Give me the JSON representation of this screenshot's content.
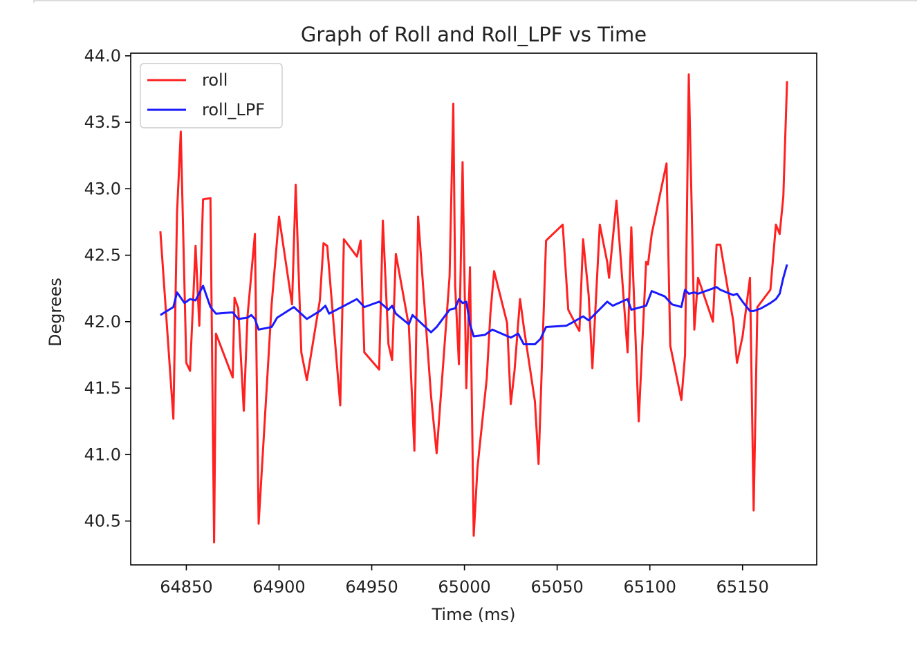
{
  "chart_data": {
    "type": "line",
    "title": "Graph of Roll and Roll_LPF vs Time",
    "xlabel": "Time (ms)",
    "ylabel": "Degrees",
    "xlim": [
      64820,
      65190
    ],
    "ylim": [
      40.17,
      44.02
    ],
    "xticks": [
      64850,
      64900,
      64950,
      65000,
      65050,
      65100,
      65150
    ],
    "xtick_labels": [
      "64850",
      "64900",
      "64950",
      "65000",
      "65050",
      "65100",
      "65150"
    ],
    "yticks": [
      40.5,
      41.0,
      41.5,
      42.0,
      42.5,
      43.0,
      43.5,
      44.0
    ],
    "ytick_labels": [
      "40.5",
      "41.0",
      "41.5",
      "42.0",
      "42.5",
      "43.0",
      "43.5",
      "44.0"
    ],
    "grid": false,
    "legend_position": "upper-left",
    "series": [
      {
        "name": "roll",
        "color": "#ff2020",
        "x": [
          64836,
          64843,
          64845,
          64847,
          64850,
          64852,
          64855,
          64857,
          64859,
          64863,
          64865,
          64866,
          64875,
          64876,
          64878,
          64881,
          64883,
          64887,
          64889,
          64896,
          64900,
          64907,
          64909,
          64912,
          64915,
          64922,
          64924,
          64926,
          64933,
          64935,
          64942,
          64944,
          64946,
          64954,
          64956,
          64959,
          64961,
          64963,
          64970,
          64973,
          64975,
          64982,
          64985,
          64992,
          64994,
          64995,
          64997,
          64999,
          65001,
          65003,
          65005,
          65007,
          65012,
          65014,
          65016,
          65023,
          65025,
          65027,
          65030,
          65032,
          65038,
          65040,
          65044,
          65053,
          65056,
          65060,
          65062,
          65064,
          65067,
          65069,
          65073,
          65077,
          65078,
          65082,
          65088,
          65090,
          65094,
          65098,
          65099,
          65101,
          65109,
          65111,
          65117,
          65119,
          65121,
          65124,
          65126,
          65134,
          65136,
          65138,
          65145,
          65147,
          65150,
          65154,
          65156,
          65158,
          65165,
          65168,
          65170,
          65172,
          65174
        ],
        "y": [
          42.68,
          41.27,
          42.82,
          43.43,
          41.69,
          41.63,
          42.57,
          41.97,
          42.92,
          42.93,
          40.34,
          41.91,
          41.58,
          42.18,
          42.1,
          41.33,
          42.04,
          42.66,
          40.48,
          42.13,
          42.79,
          42.13,
          43.03,
          41.77,
          41.56,
          42.16,
          42.59,
          42.57,
          41.37,
          42.62,
          42.49,
          42.61,
          41.77,
          41.64,
          42.76,
          41.83,
          41.71,
          42.51,
          41.97,
          41.03,
          42.79,
          41.44,
          41.01,
          42.34,
          43.64,
          42.27,
          41.68,
          43.2,
          41.5,
          42.41,
          40.39,
          40.9,
          41.57,
          42.06,
          42.38,
          41.99,
          41.38,
          41.63,
          42.17,
          41.96,
          41.4,
          40.93,
          42.61,
          42.73,
          42.09,
          41.98,
          41.93,
          42.62,
          42.2,
          41.65,
          42.73,
          42.45,
          42.33,
          42.91,
          41.77,
          42.71,
          41.25,
          42.45,
          42.43,
          42.66,
          43.19,
          41.82,
          41.41,
          41.75,
          43.86,
          41.94,
          42.33,
          42.0,
          42.58,
          42.58,
          42.0,
          41.69,
          41.89,
          42.33,
          40.58,
          42.11,
          42.24,
          42.73,
          42.66,
          42.94,
          43.81
        ]
      },
      {
        "name": "roll_LPF",
        "color": "#1a1aff",
        "x": [
          64836,
          64843,
          64845,
          64849,
          64852,
          64855,
          64859,
          64863,
          64866,
          64875,
          64878,
          64883,
          64885,
          64887,
          64889,
          64896,
          64899,
          64908,
          64915,
          64922,
          64925,
          64927,
          64942,
          64946,
          64954,
          64959,
          64961,
          64963,
          64970,
          64972,
          64982,
          64985,
          64992,
          64995,
          64997,
          64999,
          65001,
          65003,
          65005,
          65011,
          65015,
          65025,
          65029,
          65032,
          65038,
          65041,
          65044,
          65055,
          65059,
          65064,
          65067,
          65077,
          65080,
          65088,
          65090,
          65098,
          65101,
          65108,
          65112,
          65117,
          65119,
          65121,
          65124,
          65126,
          65134,
          65136,
          65138,
          65145,
          65147,
          65150,
          65154,
          65156,
          65160,
          65165,
          65168,
          65170,
          65172,
          65174
        ],
        "y": [
          42.05,
          42.11,
          42.22,
          42.14,
          42.17,
          42.16,
          42.27,
          42.11,
          42.06,
          42.07,
          42.02,
          42.03,
          42.05,
          42.02,
          41.94,
          41.96,
          42.03,
          42.11,
          42.02,
          42.08,
          42.12,
          42.06,
          42.17,
          42.11,
          42.15,
          42.09,
          42.12,
          42.06,
          41.98,
          42.05,
          41.92,
          41.96,
          42.09,
          42.1,
          42.17,
          42.14,
          42.15,
          41.98,
          41.89,
          41.9,
          41.94,
          41.88,
          41.91,
          41.83,
          41.83,
          41.87,
          41.96,
          41.97,
          42.0,
          42.04,
          42.01,
          42.15,
          42.12,
          42.17,
          42.09,
          42.12,
          42.23,
          42.19,
          42.13,
          42.11,
          42.24,
          42.21,
          42.22,
          42.21,
          42.25,
          42.26,
          42.24,
          42.2,
          42.21,
          42.15,
          42.08,
          42.08,
          42.1,
          42.14,
          42.17,
          42.21,
          42.33,
          42.43
        ]
      }
    ]
  }
}
